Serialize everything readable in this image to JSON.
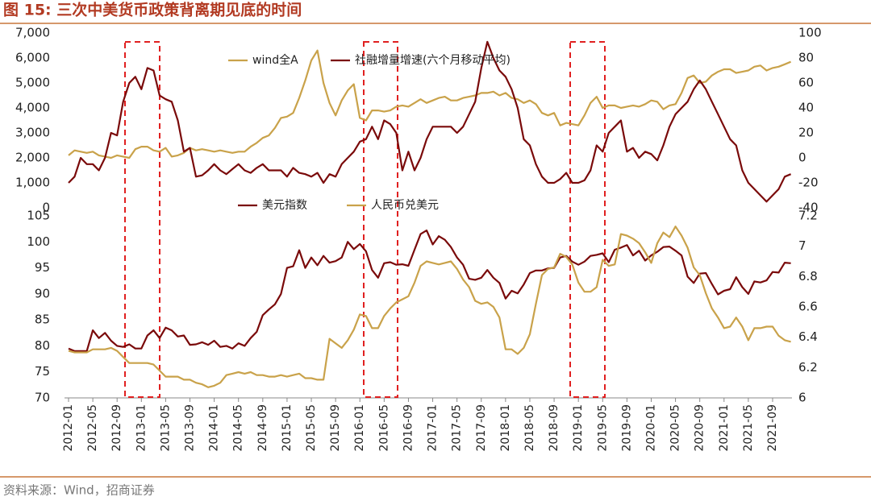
{
  "header": {
    "title": "图 15:  三次中美货币政策背离期见底的时间"
  },
  "footer": {
    "source": "资料来源：Wind，招商证券"
  },
  "chart_data": [
    {
      "type": "line",
      "ylim": [
        0,
        7000
      ],
      "yticks": [
        0,
        {
          "value": 1000,
          "label": "1,000"
        },
        {
          "value": 2000,
          "label": "2,000"
        },
        {
          "value": 3000,
          "label": "3,000"
        },
        {
          "value": 4000,
          "label": "4,000"
        },
        {
          "value": 5000,
          "label": "5,000"
        },
        {
          "value": 6000,
          "label": "6,000"
        },
        {
          "value": 7000,
          "label": "7,000"
        }
      ],
      "y2lim": [
        -40,
        100
      ],
      "y2ticks": [
        -40,
        -20,
        0,
        20,
        40,
        60,
        80,
        100
      ],
      "series": [
        {
          "name": "wind全A",
          "color": "#c9a24a",
          "values": [
            2100,
            2300,
            2250,
            2200,
            2250,
            2100,
            2050,
            2000,
            2100,
            2050,
            2000,
            2350,
            2450,
            2450,
            2300,
            2250,
            2400,
            2050,
            2100,
            2200,
            2400,
            2300,
            2350,
            2300,
            2250,
            2300,
            2250,
            2200,
            2250,
            2250,
            2450,
            2600,
            2800,
            2900,
            3200,
            3600,
            3650,
            3800,
            4400,
            5100,
            5900,
            6300,
            5000,
            4200,
            3700,
            4300,
            4700,
            4950,
            3600,
            3500,
            3900,
            3900,
            3850,
            3900,
            4050,
            4100,
            4050,
            4200,
            4350,
            4200,
            4300,
            4400,
            4450,
            4300,
            4300,
            4400,
            4450,
            4500,
            4600,
            4600,
            4650,
            4500,
            4600,
            4400,
            4350,
            4200,
            4300,
            4150,
            3800,
            3700,
            3800,
            3300,
            3400,
            3350,
            3300,
            3700,
            4200,
            4450,
            4000,
            4100,
            4100,
            4000,
            4050,
            4100,
            4050,
            4150,
            4300,
            4250,
            3950,
            4100,
            4150,
            4600,
            5200,
            5300,
            5000,
            5050,
            5300,
            5450,
            5550,
            5550,
            5400,
            5450,
            5500,
            5650,
            5700,
            5500,
            5600,
            5650,
            5750,
            5850
          ]
        },
        {
          "name": "社融增量增速(六个月移动平均)",
          "color": "#7a0a0a",
          "axis": "y2",
          "values": [
            -20,
            -15,
            0,
            -5,
            -5,
            -10,
            0,
            20,
            18,
            45,
            60,
            65,
            55,
            72,
            70,
            50,
            47,
            45,
            30,
            5,
            8,
            -15,
            -14,
            -10,
            -5,
            -10,
            -13,
            -9,
            -5,
            -10,
            -12,
            -8,
            -5,
            -10,
            -10,
            -10,
            -15,
            -8,
            -12,
            -13,
            -15,
            -12,
            -20,
            -13,
            -15,
            -5,
            0,
            5,
            13,
            15,
            25,
            15,
            30,
            27,
            20,
            -10,
            5,
            -10,
            0,
            15,
            25,
            25,
            25,
            25,
            20,
            25,
            35,
            45,
            72,
            93,
            80,
            70,
            65,
            55,
            40,
            15,
            10,
            -5,
            -15,
            -20,
            -20,
            -17,
            -12,
            -20,
            -20,
            -18,
            -10,
            10,
            5,
            20,
            25,
            30,
            5,
            8,
            0,
            5,
            3,
            -2,
            10,
            25,
            35,
            40,
            45,
            55,
            62,
            55,
            45,
            35,
            25,
            15,
            10,
            -10,
            -20,
            -25,
            -30,
            -35,
            -30,
            -25,
            -15,
            -13
          ]
        }
      ]
    },
    {
      "type": "line",
      "categories": [
        "2012-01",
        null,
        null,
        null,
        "2012-05",
        null,
        null,
        null,
        "2012-09",
        null,
        null,
        null,
        "2013-01",
        null,
        null,
        null,
        "2013-05",
        null,
        null,
        null,
        "2013-09",
        null,
        null,
        null,
        "2014-01",
        null,
        null,
        null,
        "2014-05",
        null,
        null,
        null,
        "2014-09",
        null,
        null,
        null,
        "2015-01",
        null,
        null,
        null,
        "2015-05",
        null,
        null,
        null,
        "2015-09",
        null,
        null,
        null,
        "2016-01",
        null,
        null,
        null,
        "2016-05",
        null,
        null,
        null,
        "2016-09",
        null,
        null,
        null,
        "2017-01",
        null,
        null,
        null,
        "2017-05",
        null,
        null,
        null,
        "2017-09",
        null,
        null,
        null,
        "2018-01",
        null,
        null,
        null,
        "2018-05",
        null,
        null,
        null,
        "2018-09",
        null,
        null,
        null,
        "2019-01",
        null,
        null,
        null,
        "2019-05",
        null,
        null,
        null,
        "2019-09",
        null,
        null,
        null,
        "2020-01",
        null,
        null,
        null,
        "2020-05",
        null,
        null,
        null,
        "2020-09",
        null,
        null,
        null,
        "2021-01",
        null,
        null,
        null,
        "2021-05",
        null,
        null,
        null,
        "2021-09",
        null,
        null,
        null
      ],
      "ylim": [
        70,
        105
      ],
      "yticks": [
        70,
        75,
        80,
        85,
        90,
        95,
        100,
        105
      ],
      "y2lim": [
        6,
        7.2
      ],
      "y2ticks": [
        6,
        6.2,
        6.4,
        6.6,
        6.8,
        7,
        7.2
      ],
      "series": [
        {
          "name": "美元指数",
          "color": "#7a0a0a",
          "values": [
            79.5,
            79,
            79,
            79,
            83,
            81.5,
            82.5,
            81,
            80,
            79.8,
            80.3,
            79.5,
            79.5,
            82,
            83,
            81.5,
            83.5,
            83,
            81.8,
            82,
            80.2,
            80.3,
            80.7,
            80.2,
            81,
            79.8,
            80,
            79.5,
            80.5,
            80,
            81.5,
            82.7,
            85.9,
            87,
            88,
            90,
            95,
            95.3,
            98.4,
            95,
            97,
            95.5,
            97.3,
            96,
            96.3,
            97,
            100,
            98.6,
            99.6,
            98.2,
            94.6,
            93.1,
            95.9,
            96.1,
            95.6,
            95.7,
            95.4,
            98.5,
            101.5,
            102.2,
            99.5,
            101.1,
            100.4,
            99,
            97,
            95.6,
            92.9,
            92.7,
            93.1,
            94.6,
            93.1,
            92.1,
            89.1,
            90.6,
            90.1,
            91.8,
            94,
            94.5,
            94.5,
            94.9,
            95,
            97,
            97.3,
            96.2,
            95.6,
            96.2,
            97.3,
            97.5,
            97.8,
            96.1,
            98.5,
            98.9,
            99.4,
            97.4,
            98.3,
            96.4,
            97.4,
            98.1,
            99,
            99.1,
            98.3,
            97.4,
            93.3,
            92.1,
            93.9,
            94,
            91.9,
            89.9,
            90.6,
            90.9,
            93.2,
            91.3,
            90,
            92.4,
            92.2,
            92.6,
            94.2,
            94.1,
            96,
            95.9
          ]
        },
        {
          "name": "人民币兑美元",
          "color": "#c9a24a",
          "axis": "y2",
          "values": [
            6.31,
            6.3,
            6.3,
            6.3,
            6.32,
            6.32,
            6.32,
            6.33,
            6.31,
            6.27,
            6.23,
            6.23,
            6.23,
            6.23,
            6.22,
            6.18,
            6.14,
            6.14,
            6.14,
            6.12,
            6.12,
            6.1,
            6.09,
            6.07,
            6.08,
            6.1,
            6.15,
            6.16,
            6.17,
            6.16,
            6.17,
            6.15,
            6.15,
            6.14,
            6.14,
            6.15,
            6.14,
            6.15,
            6.16,
            6.13,
            6.13,
            6.12,
            6.12,
            6.39,
            6.36,
            6.33,
            6.38,
            6.45,
            6.55,
            6.54,
            6.46,
            6.46,
            6.54,
            6.59,
            6.63,
            6.65,
            6.67,
            6.76,
            6.87,
            6.9,
            6.89,
            6.88,
            6.89,
            6.9,
            6.85,
            6.78,
            6.73,
            6.64,
            6.62,
            6.63,
            6.6,
            6.53,
            6.32,
            6.32,
            6.29,
            6.33,
            6.42,
            6.62,
            6.81,
            6.85,
            6.86,
            6.95,
            6.93,
            6.88,
            6.76,
            6.7,
            6.7,
            6.73,
            6.91,
            6.87,
            6.88,
            7.08,
            7.07,
            7.05,
            7.02,
            6.96,
            6.89,
            7.02,
            7.09,
            7.06,
            7.13,
            7.07,
            6.99,
            6.86,
            6.81,
            6.69,
            6.59,
            6.53,
            6.46,
            6.47,
            6.53,
            6.47,
            6.38,
            6.46,
            6.46,
            6.47,
            6.47,
            6.41,
            6.38,
            6.37
          ]
        }
      ]
    }
  ]
}
